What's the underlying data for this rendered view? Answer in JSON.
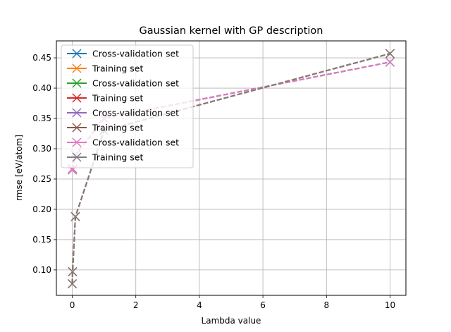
{
  "chart_data": {
    "type": "line",
    "title": "Gaussian kernel with GP description",
    "xlabel": "Lambda value",
    "ylabel": "rmse [eV/atom]",
    "xlim": [
      -0.5,
      10.5
    ],
    "ylim": [
      0.058,
      0.478
    ],
    "xticks": [
      0,
      2,
      4,
      6,
      8,
      10
    ],
    "yticks": [
      0.1,
      0.15,
      0.2,
      0.25,
      0.3,
      0.35,
      0.4,
      0.45
    ],
    "grid": true,
    "legend_position": "upper-left",
    "colors": {
      "blue": "#1f77b4",
      "orange": "#ff7f0e",
      "green": "#2ca02c",
      "red": "#d62728",
      "purple": "#9467bd",
      "brown": "#8c564b",
      "pink": "#e377c2",
      "gray": "#7f7f7f"
    },
    "series": [
      {
        "name": "Cross-validation set",
        "color": "#1f77b4",
        "x": [
          0,
          0.01,
          0.1,
          1,
          10
        ],
        "y": [
          0.265,
          0.267,
          0.29,
          0.35,
          0.443
        ]
      },
      {
        "name": "Training set",
        "color": "#ff7f0e",
        "x": [
          0,
          0.01,
          0.1,
          1,
          10
        ],
        "y": [
          0.077,
          0.097,
          0.188,
          0.33,
          0.457
        ]
      },
      {
        "name": "Cross-validation set",
        "color": "#2ca02c",
        "x": [
          0,
          0.01,
          0.1,
          1,
          10
        ],
        "y": [
          0.265,
          0.267,
          0.29,
          0.35,
          0.443
        ]
      },
      {
        "name": "Training set",
        "color": "#d62728",
        "x": [
          0,
          0.01,
          0.1,
          1,
          10
        ],
        "y": [
          0.077,
          0.097,
          0.188,
          0.33,
          0.457
        ]
      },
      {
        "name": "Cross-validation set",
        "color": "#9467bd",
        "x": [
          0,
          0.01,
          0.1,
          1,
          10
        ],
        "y": [
          0.265,
          0.267,
          0.29,
          0.35,
          0.443
        ]
      },
      {
        "name": "Training set",
        "color": "#8c564b",
        "x": [
          0,
          0.01,
          0.1,
          1,
          10
        ],
        "y": [
          0.077,
          0.097,
          0.188,
          0.33,
          0.457
        ]
      },
      {
        "name": "Cross-validation set",
        "color": "#e377c2",
        "x": [
          0,
          0.01,
          0.1,
          1,
          10
        ],
        "y": [
          0.265,
          0.267,
          0.29,
          0.35,
          0.443
        ]
      },
      {
        "name": "Training set",
        "color": "#7f7f7f",
        "x": [
          0,
          0.01,
          0.1,
          1,
          10
        ],
        "y": [
          0.077,
          0.097,
          0.188,
          0.33,
          0.457
        ]
      }
    ]
  }
}
